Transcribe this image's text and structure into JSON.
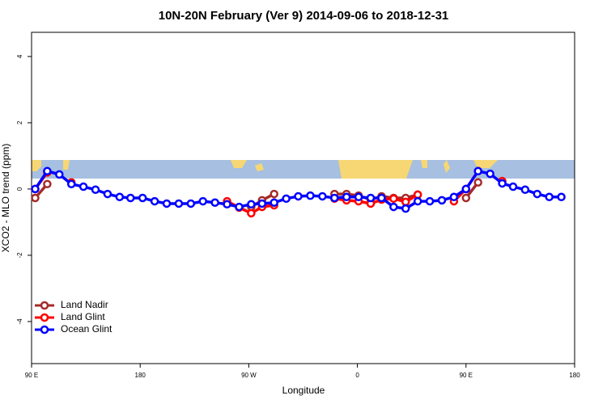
{
  "chart_data": {
    "type": "line",
    "title": "10N-20N February (Ver 9)   2014-09-06 to 2018-12-31",
    "xlabel": "Longitude",
    "ylabel": "XCO2 - MLO trend (ppm)",
    "x": [
      93,
      103,
      113,
      123,
      133,
      143,
      153,
      163,
      172,
      182,
      192,
      202,
      212,
      222,
      232,
      242,
      252,
      262,
      272,
      281,
      291,
      301,
      311,
      321,
      331,
      341,
      351,
      361,
      371,
      380,
      390,
      400,
      410,
      420,
      430,
      440,
      450,
      460,
      470,
      480,
      489,
      499,
      509,
      519,
      529
    ],
    "series": [
      {
        "name": "Land Nadir",
        "color": "#a52a2a",
        "values": [
          -0.27,
          0.15,
          null,
          0.17,
          null,
          null,
          null,
          null,
          null,
          null,
          null,
          null,
          null,
          null,
          null,
          null,
          null,
          null,
          -0.54,
          -0.34,
          -0.15,
          null,
          null,
          null,
          null,
          -0.15,
          -0.15,
          -0.2,
          -0.32,
          -0.22,
          -0.27,
          -0.27,
          -0.17,
          null,
          null,
          null,
          -0.27,
          0.2,
          null,
          0.22,
          null,
          null,
          null,
          null,
          null
        ]
      },
      {
        "name": "Land Glint",
        "color": "#ff0000",
        "values": [
          0.0,
          0.5,
          null,
          0.2,
          null,
          null,
          null,
          null,
          null,
          null,
          null,
          null,
          null,
          null,
          null,
          null,
          -0.37,
          -0.56,
          -0.73,
          -0.54,
          -0.49,
          null,
          null,
          null,
          null,
          -0.29,
          -0.34,
          -0.37,
          -0.44,
          -0.32,
          -0.29,
          -0.39,
          -0.17,
          null,
          null,
          -0.37,
          0.0,
          0.54,
          null,
          0.24,
          null,
          null,
          null,
          null,
          null
        ]
      },
      {
        "name": "Ocean Glint",
        "color": "#0000ff",
        "values": [
          0.0,
          0.54,
          0.44,
          0.15,
          0.07,
          -0.02,
          -0.15,
          -0.24,
          -0.27,
          -0.27,
          -0.37,
          -0.44,
          -0.44,
          -0.44,
          -0.37,
          -0.41,
          -0.46,
          -0.54,
          -0.46,
          -0.44,
          -0.41,
          -0.29,
          -0.22,
          -0.2,
          -0.22,
          -0.27,
          -0.24,
          -0.24,
          -0.27,
          -0.27,
          -0.54,
          -0.59,
          -0.37,
          -0.37,
          -0.34,
          -0.24,
          0.0,
          0.54,
          0.46,
          0.17,
          0.07,
          -0.02,
          -0.15,
          -0.24,
          -0.24
        ]
      }
    ],
    "xlim": [
      90,
      540
    ],
    "xticks": [
      {
        "value": 90,
        "label": "90 E"
      },
      180,
      {
        "value": 270,
        "label": "90 W"
      },
      {
        "value": 360,
        "label": "0"
      },
      {
        "value": 450,
        "label": "90 E"
      },
      {
        "value": 540,
        "label": "180"
      }
    ],
    "ylim": [
      -5.27,
      4.73
    ],
    "yticks": [
      -4,
      -2,
      0,
      2,
      4
    ],
    "legend": "bottom-left"
  }
}
